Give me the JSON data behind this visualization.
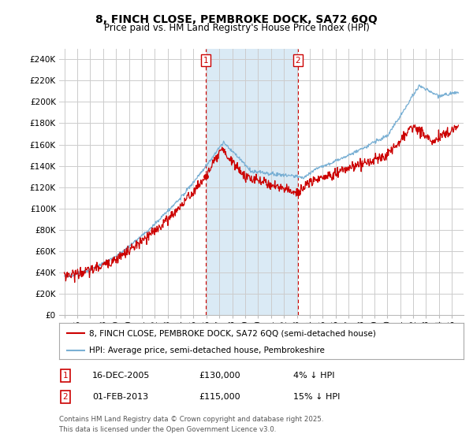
{
  "title_line1": "8, FINCH CLOSE, PEMBROKE DOCK, SA72 6QQ",
  "title_line2": "Price paid vs. HM Land Registry's House Price Index (HPI)",
  "legend_label_red": "8, FINCH CLOSE, PEMBROKE DOCK, SA72 6QQ (semi-detached house)",
  "legend_label_blue": "HPI: Average price, semi-detached house, Pembrokeshire",
  "transaction1_date": "16-DEC-2005",
  "transaction1_price": "£130,000",
  "transaction1_note": "4% ↓ HPI",
  "transaction2_date": "01-FEB-2013",
  "transaction2_price": "£115,000",
  "transaction2_note": "15% ↓ HPI",
  "footer": "Contains HM Land Registry data © Crown copyright and database right 2025.\nThis data is licensed under the Open Government Licence v3.0.",
  "ylim": [
    0,
    250000
  ],
  "yticks": [
    0,
    20000,
    40000,
    60000,
    80000,
    100000,
    120000,
    140000,
    160000,
    180000,
    200000,
    220000,
    240000
  ],
  "color_red": "#cc0000",
  "color_blue": "#7ab0d4",
  "color_shaded": "#daeaf5",
  "color_vline": "#cc0000",
  "background_color": "#ffffff",
  "grid_color": "#cccccc",
  "transaction1_year": 2005.96,
  "transaction2_year": 2013.08,
  "transaction1_price_val": 130000,
  "transaction2_price_val": 115000
}
